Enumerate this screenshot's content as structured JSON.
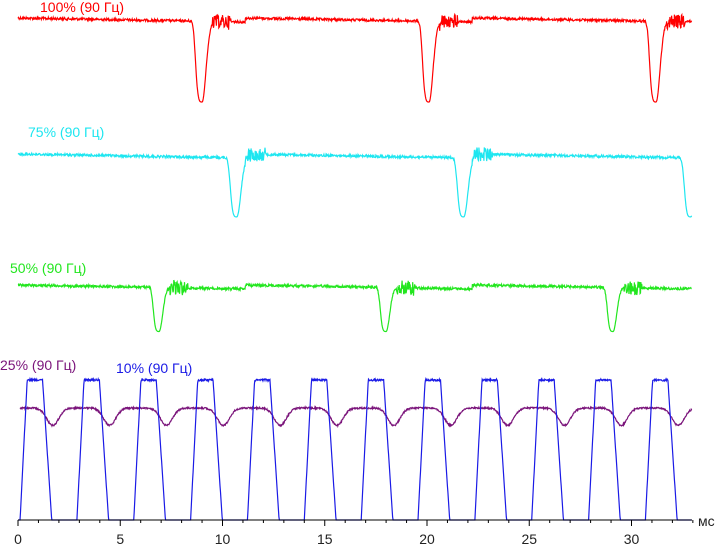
{
  "chart_data": {
    "type": "line",
    "title": "",
    "xlabel": "мс",
    "ylabel": "",
    "xlim": [
      0,
      33.5
    ],
    "x_ticks": [
      0,
      5,
      10,
      15,
      20,
      25,
      30
    ],
    "x_tick_labels": [
      "0",
      "5",
      "10",
      "15",
      "20",
      "25",
      "30"
    ],
    "grid": false,
    "series": [
      {
        "name": "100% (90 Гц)",
        "color": "#ff0000",
        "waveform": "dip",
        "period_ms": 11.1,
        "dips_ms": [
          9.0,
          20.1,
          31.2
        ],
        "dip_depth": 0.85,
        "dip_width_ms": 0.5
      },
      {
        "name": "75% (90 Гц)",
        "color": "#1ee6f0",
        "waveform": "dip",
        "period_ms": 11.1,
        "dips_ms": [
          10.7,
          21.8,
          32.9
        ],
        "dip_depth": 0.82,
        "dip_width_ms": 0.5
      },
      {
        "name": "50% (90 Гц)",
        "color": "#22e61e",
        "waveform": "dip",
        "period_ms": 11.1,
        "dips_ms": [
          6.9,
          18.0,
          29.1
        ],
        "dip_depth": 0.88,
        "dip_width_ms": 0.45
      },
      {
        "name": "25% (90 Гц)",
        "color": "#7a137a",
        "waveform": "ripple",
        "period_ms": 2.78,
        "first_dip_ms": 1.7,
        "dip_depth": 0.17,
        "dip_width_ms": 0.7
      },
      {
        "name": "10% (90 Гц)",
        "color": "#1a1ae6",
        "waveform": "pulse",
        "period_ms": 2.78,
        "first_pulse_ms": 0.1,
        "pulse_width_ms": 1.6,
        "peak_level": 1.0
      }
    ]
  }
}
